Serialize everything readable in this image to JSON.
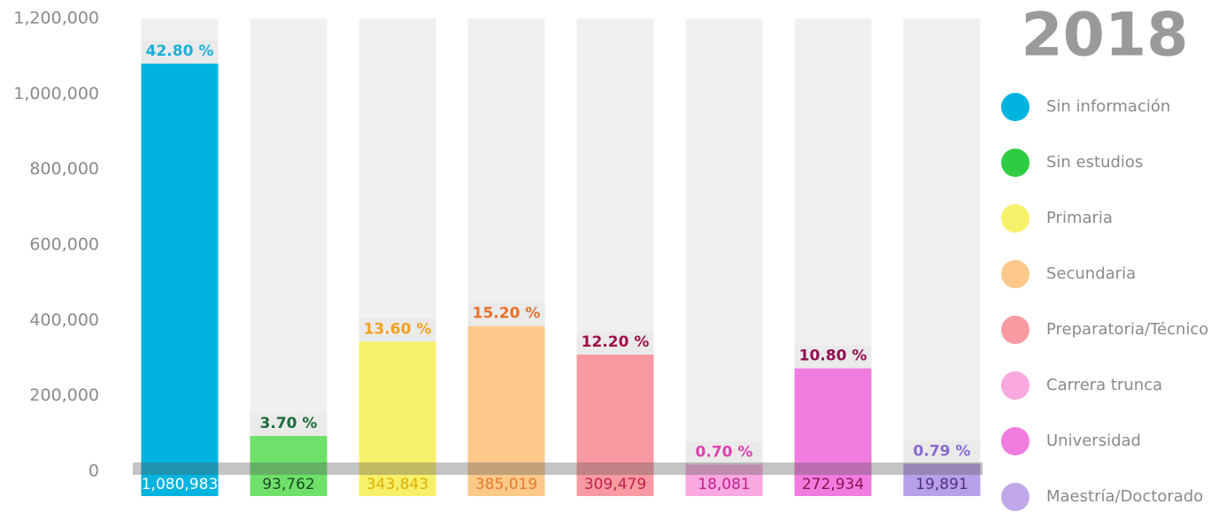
{
  "chart_data": {
    "type": "bar",
    "title": "2018",
    "categories": [
      "Sin información",
      "Sin estudios",
      "Primaria",
      "Secundaria",
      "Preparatoria/Técnico",
      "Carrera trunca",
      "Universidad",
      "Maestría/Doctorado"
    ],
    "values": [
      1080983,
      93762,
      343843,
      385019,
      309479,
      18081,
      272934,
      19891
    ],
    "value_labels": [
      "1,080,983",
      "93,762",
      "343,843",
      "385,019",
      "309,479",
      "18,081",
      "272,934",
      "19,891"
    ],
    "shares": [
      42.8,
      3.7,
      13.6,
      15.2,
      12.2,
      0.7,
      10.8,
      0.79
    ],
    "share_labels": [
      "42.80 %",
      "3.70 %",
      "13.60 %",
      "15.20 %",
      "12.20 %",
      "0.70 %",
      "10.80 %",
      "0.79 %"
    ],
    "colors": [
      "#00b4e0",
      "#6fe06a",
      "#f7f06a",
      "#fcc98a",
      "#f99aa2",
      "#f9a8e0",
      "#f07ce0",
      "#b8a0e8"
    ],
    "legend_colors": [
      "#00b4e0",
      "#2ecc40",
      "#f7f06a",
      "#fcc98a",
      "#f99aa2",
      "#f9a8e0",
      "#f07ce0",
      "#c0a8e8"
    ],
    "share_colors": [
      "#1ab0d8",
      "#1a6b3a",
      "#f0a020",
      "#e8702a",
      "#a0104a",
      "#e040b0",
      "#901050",
      "#8a6ad0"
    ],
    "label_colors": [
      "#ffffff",
      "#1a4a20",
      "#e0b000",
      "#e87a30",
      "#c02050",
      "#c02090",
      "#901050",
      "#503080"
    ],
    "ylim": [
      0,
      1200000
    ],
    "yticks": [
      0,
      {
        "value": 200000,
        "label": "200,000"
      },
      {
        "value": 400000,
        "label": "400,000"
      },
      {
        "value": 600000,
        "label": "600,000"
      },
      {
        "value": 800000,
        "label": "800,000"
      },
      {
        "value": 1000000,
        "label": "1,000,000"
      },
      {
        "value": 1200000,
        "label": "1,200,000"
      }
    ],
    "legend": "right"
  }
}
